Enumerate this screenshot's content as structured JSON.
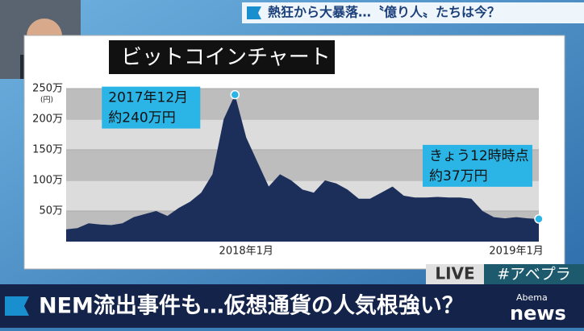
{
  "banner": "熱狂から大暴落…〝億り人〟たちは今？",
  "live": "LIVE",
  "hashtag": "#アベプラ",
  "headline": "NEM流出事件も…仮想通貨の人気根強い？",
  "logo": {
    "brand": "Abema",
    "name": "news"
  },
  "chart_data": {
    "type": "area",
    "title": "ビットコインチャート",
    "y_unit": "(円)",
    "categories": [
      null,
      null,
      null,
      null,
      null,
      null,
      null,
      null,
      null,
      null,
      null,
      null,
      null,
      null,
      null,
      null,
      "2018年1月",
      null,
      null,
      null,
      null,
      null,
      null,
      null,
      null,
      null,
      null,
      null,
      null,
      null,
      null,
      null,
      null,
      null,
      null,
      null,
      null,
      null,
      null,
      null,
      "2019年1月",
      null,
      null
    ],
    "series": [
      {
        "name": "ビットコイン",
        "color": "#1c2e5a",
        "values": [
          20,
          22,
          30,
          28,
          27,
          30,
          40,
          45,
          50,
          42,
          55,
          65,
          80,
          110,
          200,
          240,
          170,
          130,
          90,
          110,
          100,
          85,
          80,
          100,
          95,
          85,
          70,
          70,
          80,
          90,
          75,
          72,
          72,
          73,
          72,
          72,
          70,
          50,
          40,
          38,
          40,
          38,
          37
        ]
      }
    ],
    "ylim": [
      0,
      250
    ],
    "yticks": [
      {
        "value": 50,
        "label": "50万"
      },
      {
        "value": 100,
        "label": "100万"
      },
      {
        "value": 150,
        "label": "150万"
      },
      {
        "value": 200,
        "label": "200万"
      },
      {
        "value": 250,
        "label": "250万"
      }
    ],
    "grid": true,
    "annotations": [
      {
        "index": 15,
        "lines": [
          "2017年12月",
          "約240万円"
        ]
      },
      {
        "index": 42,
        "lines": [
          "きょう12時時点",
          "約37万円"
        ]
      }
    ]
  }
}
